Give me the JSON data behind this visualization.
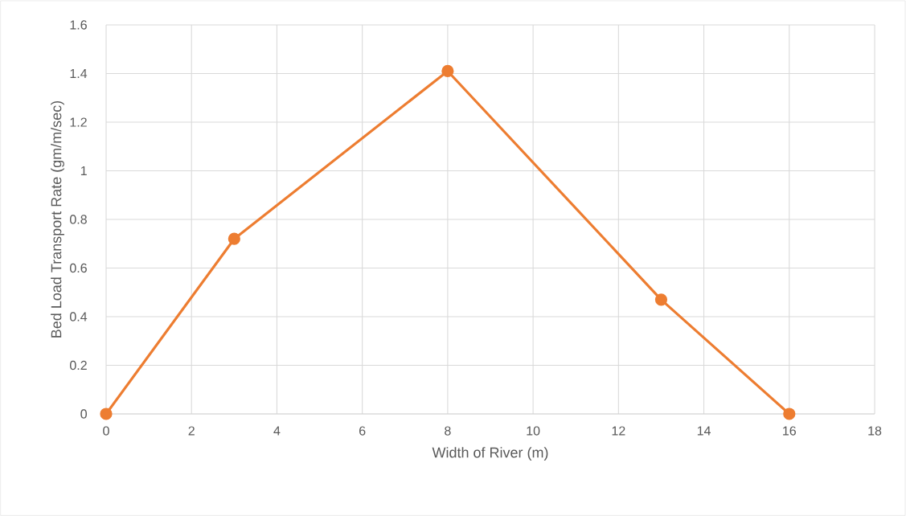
{
  "chart_data": {
    "type": "line",
    "xlabel": "Width of River (m)",
    "ylabel": "Bed Load Transport Rate (gm/m/sec)",
    "x": [
      0,
      3,
      8,
      13,
      16
    ],
    "series": [
      {
        "color": "#ed7d31",
        "values": [
          0,
          0.72,
          1.41,
          0.47,
          0
        ]
      }
    ],
    "xlim": [
      0,
      18
    ],
    "xticks": [
      0,
      2,
      4,
      6,
      8,
      10,
      12,
      14,
      16,
      18
    ],
    "ylim": [
      0,
      1.6
    ],
    "yticks": [
      0,
      0.2,
      0.4,
      0.6,
      0.8,
      1,
      1.2,
      1.4,
      1.6
    ],
    "grid": true,
    "marker": "circle",
    "line_style": "solid"
  }
}
